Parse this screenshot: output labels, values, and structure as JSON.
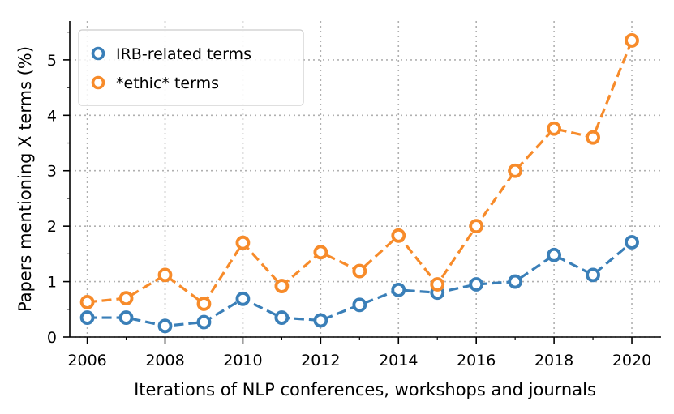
{
  "chart_data": {
    "type": "line",
    "title": "",
    "xlabel": "Iterations of NLP conferences, workshops and journals",
    "ylabel": "Papers mentioning X terms (%)",
    "x": [
      2006,
      2007,
      2008,
      2009,
      2010,
      2011,
      2012,
      2013,
      2014,
      2015,
      2016,
      2017,
      2018,
      2019,
      2020
    ],
    "xticks": [
      "2006",
      "2008",
      "2010",
      "2012",
      "2014",
      "2016",
      "2018",
      "2020"
    ],
    "yticks": [
      "0",
      "1",
      "2",
      "3",
      "4",
      "5"
    ],
    "xlim": [
      2005.55,
      2020.75
    ],
    "ylim": [
      0,
      5.7
    ],
    "grid": true,
    "legend_position": "top-left",
    "series": [
      {
        "name": "IRB-related terms",
        "color": "#3a7fb8",
        "values": [
          0.35,
          0.35,
          0.2,
          0.27,
          0.69,
          0.35,
          0.3,
          0.58,
          0.85,
          0.8,
          0.95,
          1.0,
          1.48,
          1.12,
          1.71
        ]
      },
      {
        "name": "*ethic* terms",
        "color": "#f78b2a",
        "values": [
          0.63,
          0.7,
          1.12,
          0.6,
          1.7,
          0.92,
          1.53,
          1.19,
          1.83,
          0.95,
          2.0,
          3.0,
          3.76,
          3.6,
          5.35
        ]
      }
    ]
  }
}
